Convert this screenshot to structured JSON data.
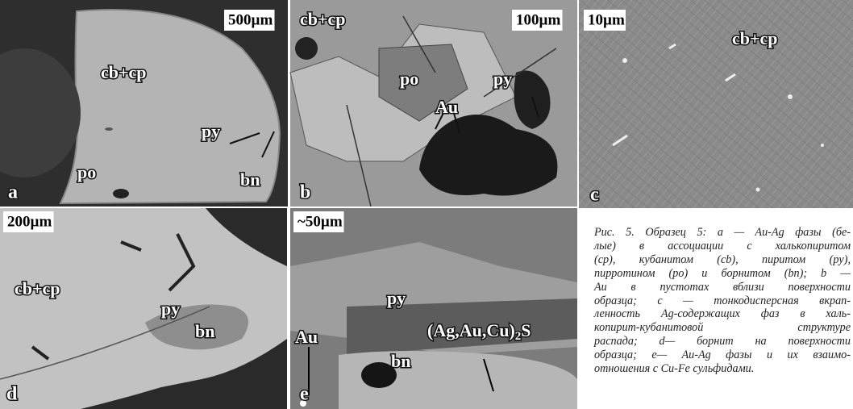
{
  "panels": [
    {
      "letter": "a",
      "scale": "500µm",
      "labels": [
        "cb+cp",
        "py",
        "bn",
        "po"
      ]
    },
    {
      "letter": "b",
      "scale": "100µm",
      "labels": [
        "cb+cp",
        "po",
        "py",
        "Au"
      ]
    },
    {
      "letter": "c",
      "scale": "10µm",
      "labels": [
        "cb+cp"
      ]
    },
    {
      "letter": "d",
      "scale": "200µm",
      "labels": [
        "cb+cp",
        "py",
        "bn"
      ]
    },
    {
      "letter": "e",
      "scale": "~50µm",
      "labels": [
        "py",
        "Au",
        "bn"
      ],
      "formula": {
        "text": "(Ag,Au,Cu)",
        "sub": "2",
        "tail": "S"
      }
    }
  ],
  "caption": [
    "Рис. 5. Образец 5: a — Au-Ag фазы (бе-",
    "лые) в ассоциации с халькопиритом",
    "(cp), кубанитом (cb), пиритом (py),",
    "пирротином (po) и борнитом (bn); b —",
    "Au в пустотах вблизи поверхности",
    "образца; c — тонкодисперсная вкрап-",
    "ленность Ag-содержащих фаз в халь-",
    "копирит-кубанитовой структуре",
    "распада; d— борнит на поверхности",
    "образца; e— Au-Ag фазы и их взаимо-",
    "отношения с Cu-Fe сульфидами."
  ]
}
